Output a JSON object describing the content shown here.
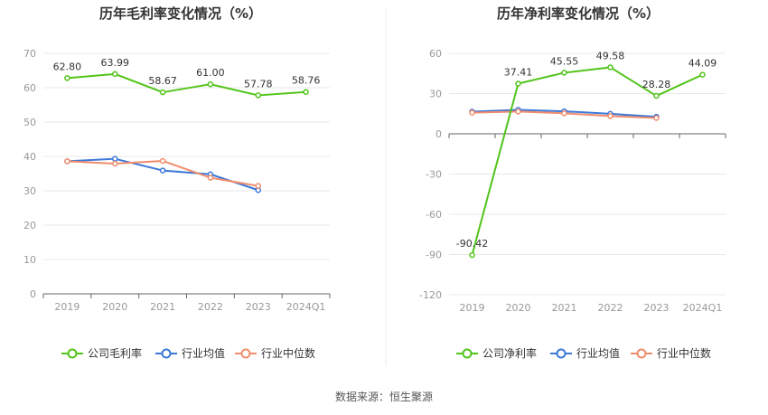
{
  "source": "数据来源：恒生聚源",
  "chart_data": [
    {
      "type": "line",
      "title": "历年毛利率变化情况（%）",
      "categories": [
        "2019",
        "2020",
        "2021",
        "2022",
        "2023",
        "2024Q1"
      ],
      "y_ticks": [
        "0",
        "10",
        "20",
        "30",
        "40",
        "50",
        "60",
        "70"
      ],
      "ylim": [
        0,
        70
      ],
      "grid": true,
      "legend_position": "bottom",
      "series": [
        {
          "name": "公司毛利率",
          "color": "#52c41a",
          "values": [
            62.8,
            63.99,
            58.67,
            61.0,
            57.78,
            58.76
          ],
          "labels": [
            "62.80",
            "63.99",
            "58.67",
            "61.00",
            "57.78",
            "58.76"
          ]
        },
        {
          "name": "行业均值",
          "color": "#3c78d8",
          "values": [
            38.6,
            39.3,
            35.9,
            34.8,
            30.2,
            null
          ]
        },
        {
          "name": "行业中位数",
          "color": "#f08c6c",
          "values": [
            38.6,
            37.9,
            38.7,
            33.8,
            31.4,
            null
          ]
        }
      ]
    },
    {
      "type": "line",
      "title": "历年净利率变化情况（%）",
      "categories": [
        "2019",
        "2020",
        "2021",
        "2022",
        "2023",
        "2024Q1"
      ],
      "y_ticks": [
        "-120",
        "-90",
        "-60",
        "-30",
        "0",
        "30",
        "60"
      ],
      "ylim": [
        -120,
        60
      ],
      "grid": true,
      "legend_position": "bottom",
      "series": [
        {
          "name": "公司净利率",
          "color": "#52c41a",
          "values": [
            -90.42,
            37.41,
            45.55,
            49.58,
            28.28,
            44.09
          ],
          "labels": [
            "-90.42",
            "37.41",
            "45.55",
            "49.58",
            "28.28",
            "44.09"
          ]
        },
        {
          "name": "行业均值",
          "color": "#3c78d8",
          "values": [
            16.5,
            17.9,
            16.8,
            14.9,
            12.7,
            null
          ]
        },
        {
          "name": "行业中位数",
          "color": "#f08c6c",
          "values": [
            15.8,
            16.6,
            15.3,
            13.2,
            11.8,
            null
          ]
        }
      ]
    }
  ]
}
